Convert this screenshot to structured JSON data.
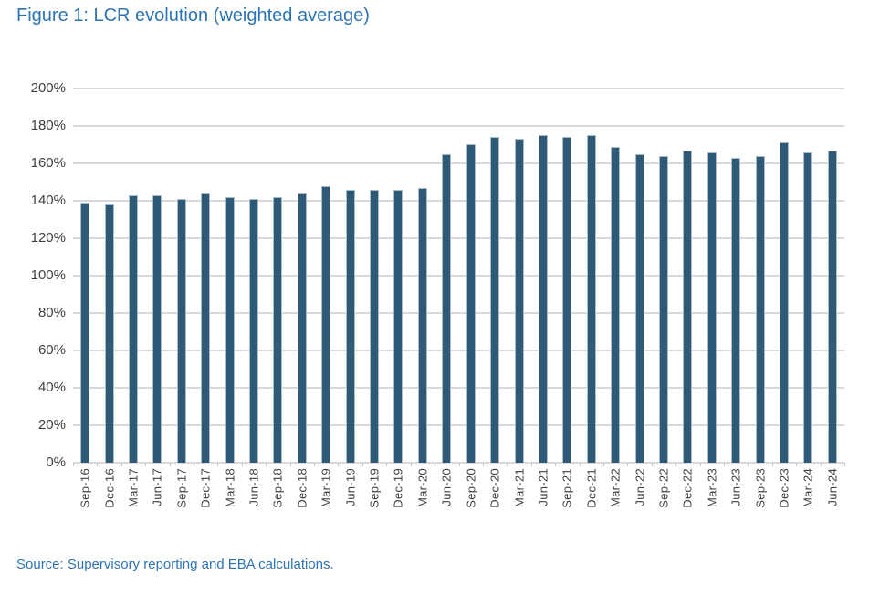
{
  "figure": {
    "title": "Figure 1: LCR evolution (weighted average)",
    "source": "Source: Supervisory reporting and EBA calculations."
  },
  "chart_data": {
    "type": "bar",
    "title": "Figure 1: LCR evolution (weighted average)",
    "categories": [
      "Sep-16",
      "Dec-16",
      "Mar-17",
      "Jun-17",
      "Sep-17",
      "Dec-17",
      "Mar-18",
      "Jun-18",
      "Sep-18",
      "Dec-18",
      "Mar-19",
      "Jun-19",
      "Sep-19",
      "Dec-19",
      "Mar-20",
      "Jun-20",
      "Sep-20",
      "Dec-20",
      "Mar-21",
      "Jun-21",
      "Sep-21",
      "Dec-21",
      "Mar-22",
      "Jun-22",
      "Sep-22",
      "Dec-22",
      "Mar-23",
      "Jun-23",
      "Sep-23",
      "Dec-23",
      "Mar-24",
      "Jun-24"
    ],
    "values": [
      139,
      138,
      143,
      143,
      141,
      144,
      142,
      141,
      142,
      144,
      148,
      146,
      146,
      146,
      147,
      165,
      170,
      174,
      173,
      175,
      174,
      175,
      169,
      165,
      164,
      167,
      166,
      163,
      164,
      171,
      166,
      167
    ],
    "unit": "%",
    "xlabel": "",
    "ylabel": "",
    "ylim": [
      0,
      200
    ],
    "ytick_step": 20,
    "ytick_labels": [
      "0%",
      "20%",
      "40%",
      "60%",
      "80%",
      "100%",
      "120%",
      "140%",
      "160%",
      "180%",
      "200%"
    ],
    "grid": true,
    "legend": false,
    "bar_color": "#2E5A78",
    "bar_border_color": "#A9BCC9",
    "gridline_color": "#D9D9D9",
    "tick_label_color": "#404040",
    "accent_color": "#2E74B5",
    "source_note": "Source: Supervisory reporting and EBA calculations."
  }
}
